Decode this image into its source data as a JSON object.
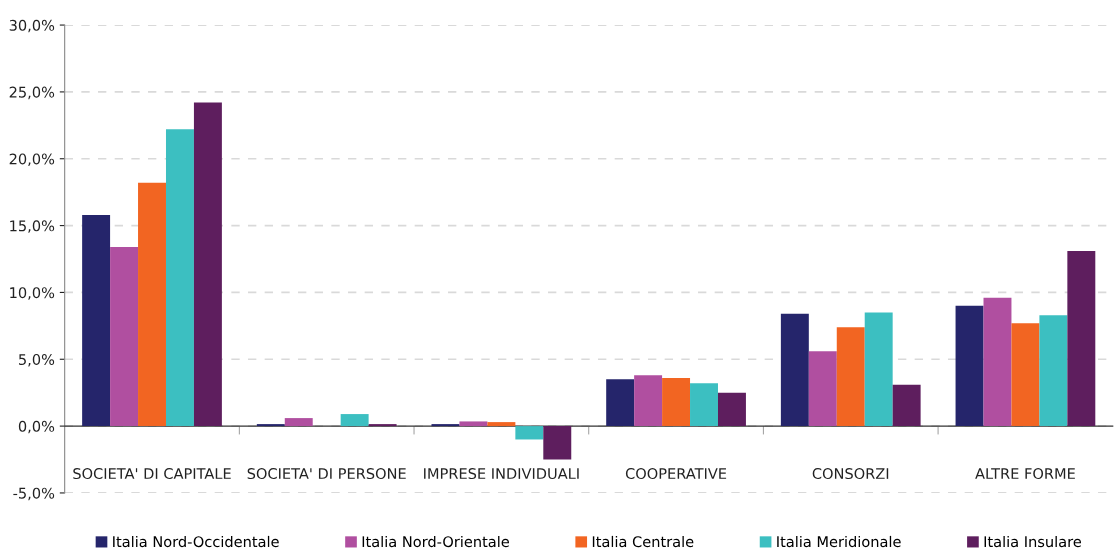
{
  "chart_data": {
    "type": "bar",
    "categories": [
      "SOCIETA' DI CAPITALE",
      "SOCIETA' DI PERSONE",
      "IMPRESE INDIVIDUALI",
      "COOPERATIVE",
      "CONSORZI",
      "ALTRE FORME"
    ],
    "series": [
      {
        "name": "Italia Nord-Occidentale",
        "color": "#25256b",
        "values": [
          15.8,
          0.15,
          0.15,
          3.5,
          8.4,
          9.0
        ]
      },
      {
        "name": "Italia Nord-Orientale",
        "color": "#b04fa0",
        "values": [
          13.4,
          0.6,
          0.35,
          3.8,
          5.6,
          9.6
        ]
      },
      {
        "name": "Italia Centrale",
        "color": "#f26522",
        "values": [
          18.2,
          0,
          0.3,
          3.6,
          7.4,
          7.7
        ]
      },
      {
        "name": "Italia Meridionale",
        "color": "#3cbfc1",
        "values": [
          22.2,
          0.9,
          -1.0,
          3.2,
          8.5,
          8.3
        ]
      },
      {
        "name": "Italia Insulare",
        "color": "#5e1e5e",
        "values": [
          24.2,
          0.15,
          -2.5,
          2.5,
          3.1,
          13.1
        ]
      }
    ],
    "ylim": [
      -5,
      30
    ],
    "yticks": [
      {
        "value": -5,
        "label": "-5,0%"
      },
      {
        "value": 0,
        "label": "0,0%"
      },
      {
        "value": 5,
        "label": "5,0%"
      },
      {
        "value": 10,
        "label": "10,0%"
      },
      {
        "value": 15,
        "label": "15,0%"
      },
      {
        "value": 20,
        "label": "20,0%"
      },
      {
        "value": 25,
        "label": "25,0%"
      },
      {
        "value": 30,
        "label": "30,0%"
      }
    ],
    "grid": "y",
    "legend": "bottom"
  }
}
